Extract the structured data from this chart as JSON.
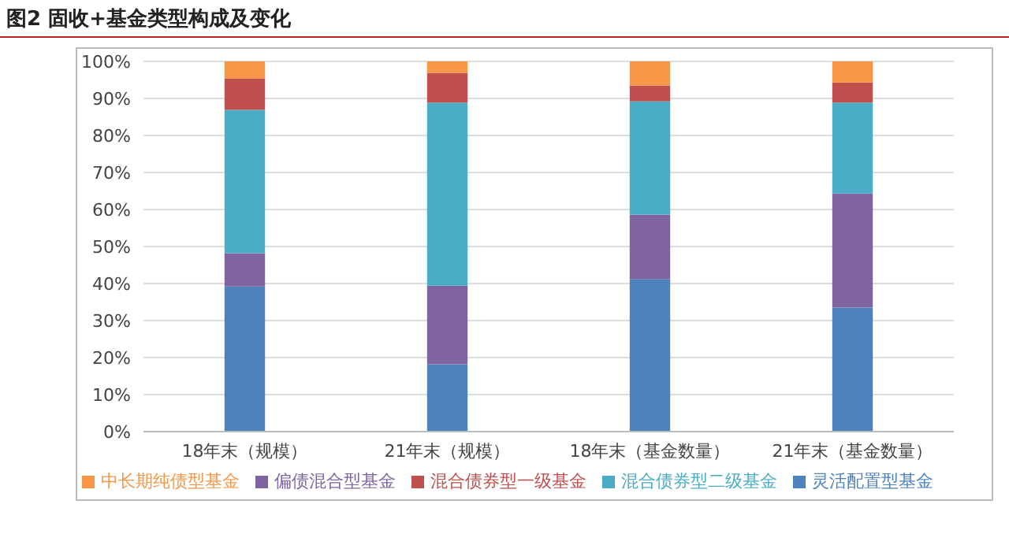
{
  "chart_data": {
    "type": "bar",
    "title": "图2 固收+基金类型构成及变化",
    "categories": [
      "18年末（规模）",
      "21年末（规模）",
      "18年末（基金数量）",
      "21年末（基金数量）"
    ],
    "stacked": true,
    "series": [
      {
        "name": "灵活配置型基金",
        "color": "#4f81bd",
        "values": [
          39.2,
          18.2,
          41.2,
          33.5
        ]
      },
      {
        "name": "偏债混合型基金",
        "color": "#8064a2",
        "values": [
          9,
          21.2,
          17.4,
          30.8
        ]
      },
      {
        "name": "混合债券型二级基金",
        "color": "#4bacc6",
        "values": [
          38.7,
          49.5,
          30.6,
          24.6
        ]
      },
      {
        "name": "混合债券型一级基金",
        "color": "#c0504d",
        "values": [
          8.5,
          8,
          4.3,
          5.4
        ]
      },
      {
        "name": "中长期纯债型基金",
        "color": "#f79646",
        "values": [
          4.6,
          3.1,
          6.5,
          5.7
        ]
      }
    ],
    "ylim": [
      0,
      100
    ],
    "yticks": [
      {
        "value": 0,
        "label": "0%"
      },
      {
        "value": 10,
        "label": "10%"
      },
      {
        "value": 20,
        "label": "20%"
      },
      {
        "value": 30,
        "label": "30%"
      },
      {
        "value": 40,
        "label": "40%"
      },
      {
        "value": 50,
        "label": "50%"
      },
      {
        "value": 60,
        "label": "60%"
      },
      {
        "value": 70,
        "label": "70%"
      },
      {
        "value": 80,
        "label": "80%"
      },
      {
        "value": 90,
        "label": "90%"
      },
      {
        "value": 100,
        "label": "100%"
      }
    ],
    "grid": "y",
    "legend": "bottom"
  }
}
